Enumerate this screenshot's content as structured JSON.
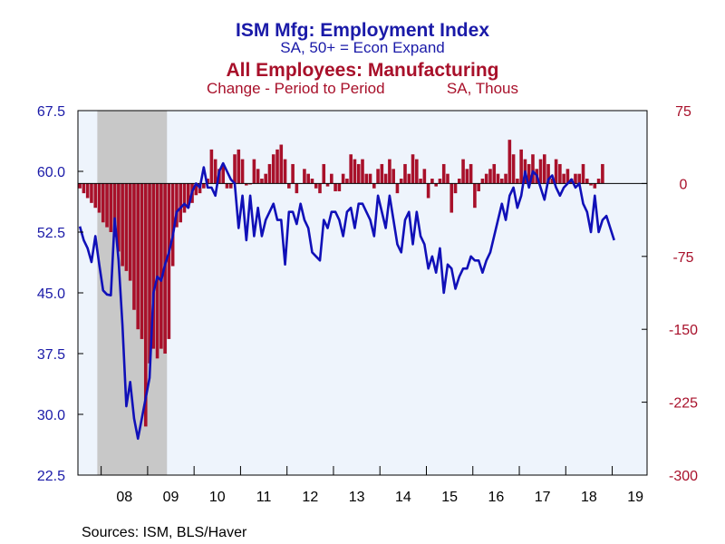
{
  "chart_data": {
    "type": "bar+line",
    "title_primary": "ISM Mfg: Employment Index",
    "subtitle_primary": "SA, 50+ = Econ Expand",
    "title_secondary": "All Employees: Manufacturing",
    "subtitle_secondary_left": "Change - Period to Period",
    "subtitle_secondary_right": "SA, Thous",
    "source": "Sources:  ISM, BLS/Haver",
    "left_axis": {
      "range": [
        22.5,
        67.5
      ],
      "ticks": [
        "67.5",
        "60.0",
        "52.5",
        "45.0",
        "37.5",
        "30.0",
        "22.5"
      ],
      "color": "#1a1aa8"
    },
    "right_axis": {
      "range": [
        -300,
        75
      ],
      "ticks": [
        "75",
        "0",
        "-75",
        "-150",
        "-225",
        "-300"
      ],
      "color": "#a8102a"
    },
    "x_axis": {
      "start_year": 2007.5,
      "end_year": 2019.75,
      "labels": [
        "08",
        "09",
        "10",
        "11",
        "12",
        "13",
        "14",
        "15",
        "16",
        "17",
        "18",
        "19"
      ]
    },
    "recession": {
      "from": 2007.917,
      "to": 2009.417
    },
    "colors": {
      "line": "#1010b8",
      "bars": "#a8102a",
      "plot_bg": "#eef4fc",
      "recession": "#c8c8c8"
    },
    "series": [
      {
        "name": "ISM Mfg: Employment Index",
        "axis": "left",
        "values": [
          53.2,
          51.5,
          50.5,
          48.8,
          52.0,
          48.5,
          45.3,
          44.8,
          44.7,
          54.2,
          49.0,
          41.0,
          31.0,
          34.0,
          29.5,
          27.0,
          29.5,
          32.0,
          34.5,
          45.0,
          47.0,
          46.5,
          48.5,
          50.0,
          52.0,
          55.0,
          55.5,
          56.0,
          55.5,
          57.5,
          58.5,
          58.0,
          60.5,
          58.0,
          58.0,
          57.0,
          60.0,
          61.0,
          60.0,
          59.0,
          58.5,
          53.0,
          57.0,
          51.5,
          57.0,
          52.0,
          55.5,
          52.0,
          54.0,
          55.0,
          56.0,
          54.0,
          54.0,
          48.5,
          55.0,
          55.0,
          53.5,
          56.0,
          54.0,
          53.0,
          50.0,
          49.5,
          49.0,
          54.0,
          53.0,
          55.0,
          55.0,
          54.0,
          52.0,
          55.0,
          55.5,
          53.0,
          56.0,
          56.0,
          55.0,
          54.0,
          52.0,
          57.0,
          55.0,
          53.0,
          57.0,
          54.0,
          51.0,
          50.0,
          54.0,
          55.0,
          51.0,
          55.0,
          52.0,
          51.0,
          48.0,
          49.5,
          47.5,
          50.5,
          45.0,
          48.5,
          48.0,
          45.5,
          47.0,
          48.0,
          48.0,
          49.5,
          49.0,
          49.0,
          47.5,
          49.0,
          50.0,
          52.0,
          54.0,
          56.0,
          54.0,
          57.0,
          58.0,
          55.5,
          57.0,
          60.0,
          58.0,
          60.0,
          59.5,
          58.0,
          56.5,
          59.0,
          59.5,
          58.0,
          57.0,
          58.0,
          58.5,
          59.0,
          58.0,
          58.5,
          56.0,
          55.0,
          52.5,
          57.0,
          52.5,
          54.0,
          54.5,
          53.0,
          51.5
        ]
      },
      {
        "name": "All Employees: Manufacturing",
        "axis": "right",
        "values": [
          -5,
          -10,
          -15,
          -20,
          -25,
          -30,
          -40,
          -45,
          -50,
          -55,
          -70,
          -85,
          -90,
          -100,
          -130,
          -150,
          -160,
          -250,
          -185,
          -170,
          -180,
          -170,
          -175,
          -160,
          -85,
          -45,
          -40,
          -30,
          -25,
          -20,
          -12,
          -10,
          -5,
          5,
          35,
          25,
          15,
          20,
          -5,
          -5,
          30,
          35,
          25,
          -2,
          -1,
          25,
          15,
          5,
          10,
          20,
          30,
          35,
          40,
          25,
          -5,
          20,
          -10,
          0,
          15,
          10,
          5,
          -5,
          -10,
          20,
          -3,
          10,
          -8,
          -8,
          10,
          5,
          30,
          25,
          20,
          25,
          10,
          10,
          -5,
          15,
          20,
          10,
          25,
          15,
          -10,
          5,
          20,
          10,
          30,
          25,
          5,
          15,
          -15,
          5,
          -3,
          5,
          20,
          10,
          -30,
          -10,
          5,
          25,
          15,
          20,
          -25,
          -8,
          5,
          10,
          15,
          20,
          10,
          5,
          10,
          45,
          30,
          5,
          35,
          25,
          20,
          30,
          15,
          25,
          30,
          20,
          5,
          25,
          20,
          10,
          15,
          5,
          10,
          10,
          20,
          5,
          -2,
          -5,
          5,
          20
        ]
      }
    ]
  }
}
